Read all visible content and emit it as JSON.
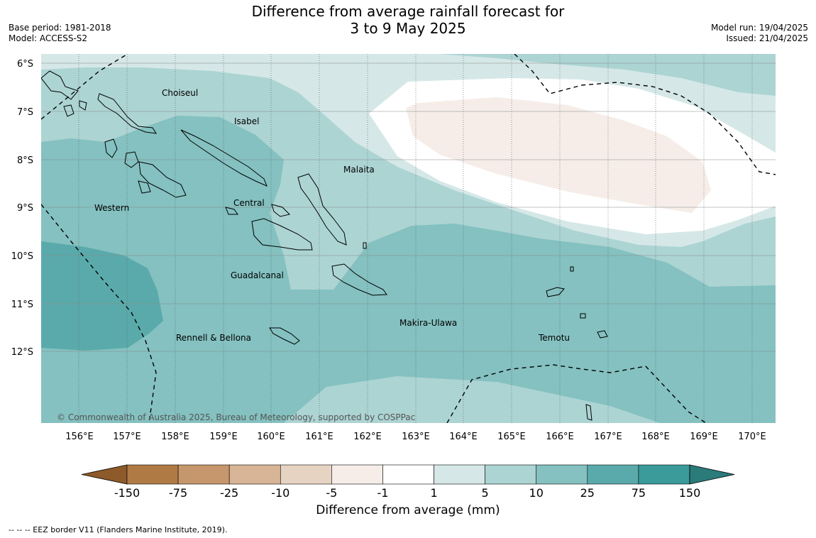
{
  "header": {
    "title_line1": "Difference from average rainfall forecast for",
    "title_line2": "3 to 9 May 2025",
    "base_period": "Base period: 1981-2018",
    "model": "Model: ACCESS-S2",
    "model_run": "Model run: 19/04/2025",
    "issued": "Issued: 21/04/2025"
  },
  "map": {
    "lat_labels": [
      "6°S",
      "7°S",
      "8°S",
      "9°S",
      "10°S",
      "11°S",
      "12°S"
    ],
    "lon_labels": [
      "156°E",
      "157°E",
      "158°E",
      "159°E",
      "160°E",
      "161°E",
      "162°E",
      "163°E",
      "164°E",
      "165°E",
      "166°E",
      "167°E",
      "168°E",
      "169°E",
      "170°E"
    ],
    "province_labels": [
      "Choiseul",
      "Isabel",
      "Malaita",
      "Western",
      "Central",
      "Guadalcanal",
      "Makira-Ulawa",
      "Rennell & Bellona",
      "Temotu"
    ],
    "copyright": "© Commonwealth of Australia 2025, Bureau of Meteorology, supported by COSPPac",
    "land_outline_color": "#000000",
    "eez_line_color": "#000000"
  },
  "colorbar": {
    "title": "Difference from average (mm)",
    "tick_labels": [
      "-150",
      "-75",
      "-25",
      "-10",
      "-5",
      "-1",
      "1",
      "5",
      "10",
      "25",
      "75",
      "150"
    ],
    "colors": [
      "#8e5a2a",
      "#b07a45",
      "#c6976c",
      "#d8b596",
      "#e6d3c2",
      "#f6ede8",
      "#ffffff",
      "#d5e8e7",
      "#acd4d3",
      "#84c1c0",
      "#5aaaab",
      "#3a9b9a",
      "#2b7b7a"
    ]
  },
  "footnote": "--  --  -- EEZ border V11 (Flanders Marine Institute, 2019)."
}
